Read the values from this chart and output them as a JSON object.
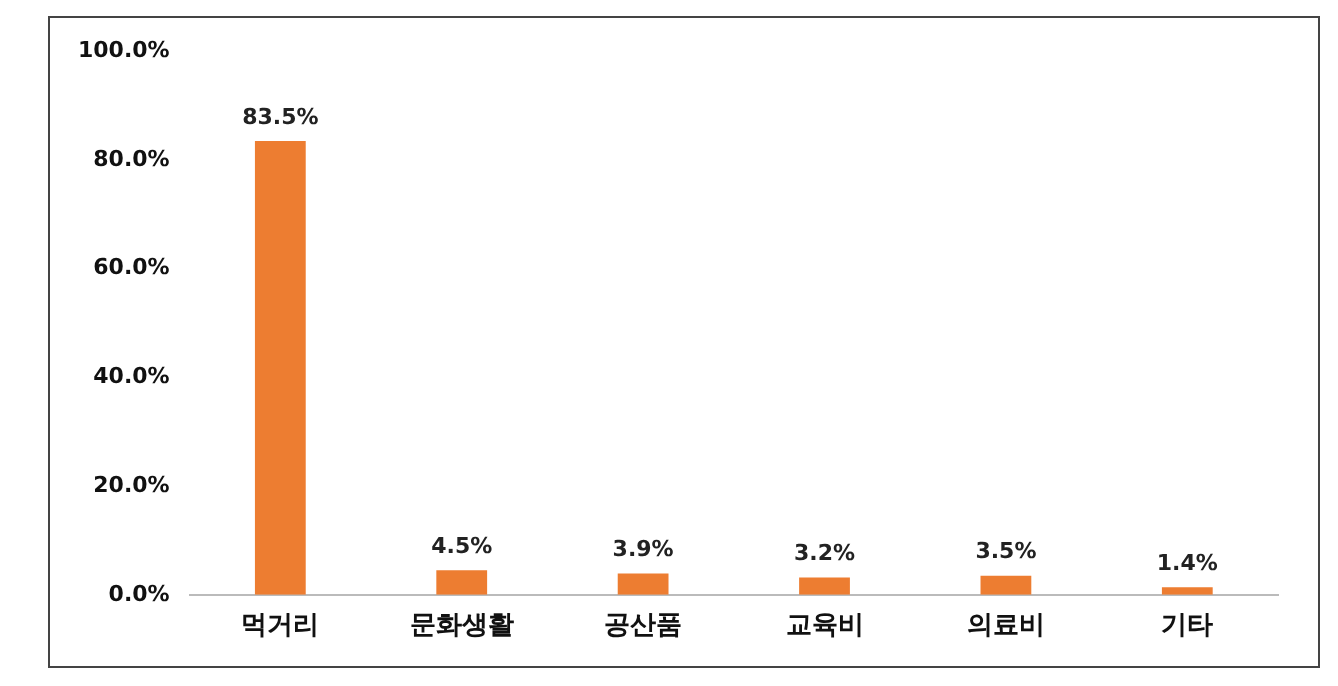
{
  "chart_data": {
    "type": "bar",
    "categories": [
      "먹거리",
      "문화생활",
      "공산품",
      "교육비",
      "의료비",
      "기타"
    ],
    "values": [
      83.5,
      4.5,
      3.9,
      3.2,
      3.5,
      1.4
    ],
    "value_labels": [
      "83.5%",
      "4.5%",
      "3.9%",
      "3.2%",
      "3.5%",
      "1.4%"
    ],
    "color": "#ed7d31",
    "ylim": [
      0,
      100
    ],
    "yticks": [
      {
        "value": 0,
        "label": "0.0%"
      },
      {
        "value": 20,
        "label": "20.0%"
      },
      {
        "value": 40,
        "label": "40.0%"
      },
      {
        "value": 60,
        "label": "60.0%"
      },
      {
        "value": 80,
        "label": "80.0%"
      },
      {
        "value": 100,
        "label": "100.0%"
      }
    ],
    "grid": false,
    "legend": false
  }
}
